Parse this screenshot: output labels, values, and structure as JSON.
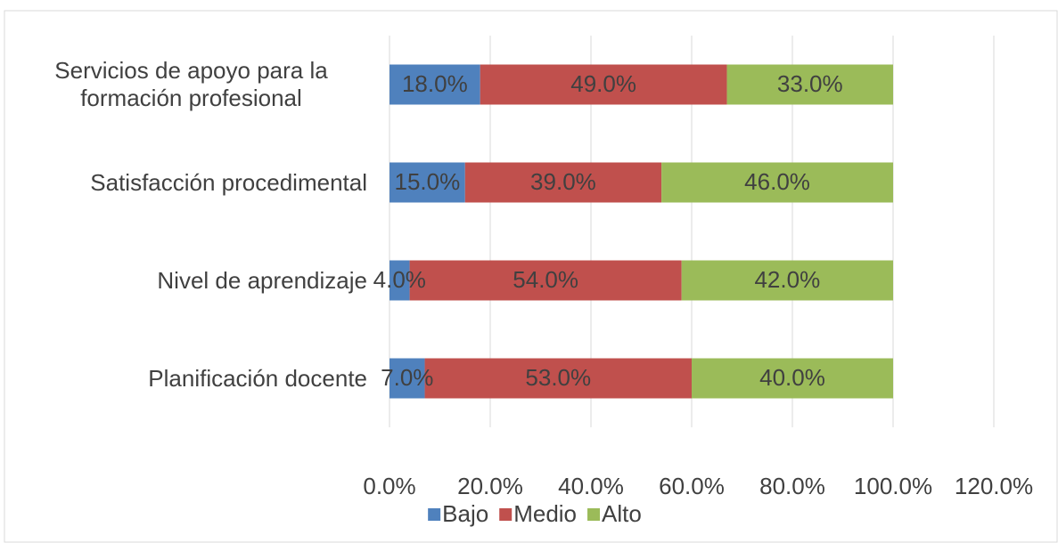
{
  "chart_data": {
    "type": "stacked_bar_horizontal",
    "categories": [
      "Servicios de apoyo para la formación profesional",
      "Satisfacción procedimental",
      "Nivel de aprendizaje",
      "Planificación docente"
    ],
    "series": [
      {
        "name": "Bajo",
        "color": "#4f81bd",
        "values": [
          18,
          15,
          4,
          7
        ],
        "value_labels": [
          "18.0%",
          "15.0%",
          "4.0%",
          "7.0%"
        ]
      },
      {
        "name": "Medio",
        "color": "#c0504d",
        "values": [
          49,
          39,
          54,
          53
        ],
        "value_labels": [
          "49.0%",
          "39.0%",
          "54.0%",
          "53.0%"
        ]
      },
      {
        "name": "Alto",
        "color": "#9bbb59",
        "values": [
          33,
          46,
          42,
          40
        ],
        "value_labels": [
          "33.0%",
          "46.0%",
          "42.0%",
          "40.0%"
        ]
      }
    ],
    "xlim": [
      0,
      120
    ],
    "xticks": [
      {
        "value": 0,
        "label": "0.0%"
      },
      {
        "value": 20,
        "label": "20.0%"
      },
      {
        "value": 40,
        "label": "40.0%"
      },
      {
        "value": 60,
        "label": "60.0%"
      },
      {
        "value": 80,
        "label": "80.0%"
      },
      {
        "value": 100,
        "label": "100.0%"
      },
      {
        "value": 120,
        "label": "120.0%"
      }
    ],
    "grid": true,
    "legend": "bottom"
  }
}
